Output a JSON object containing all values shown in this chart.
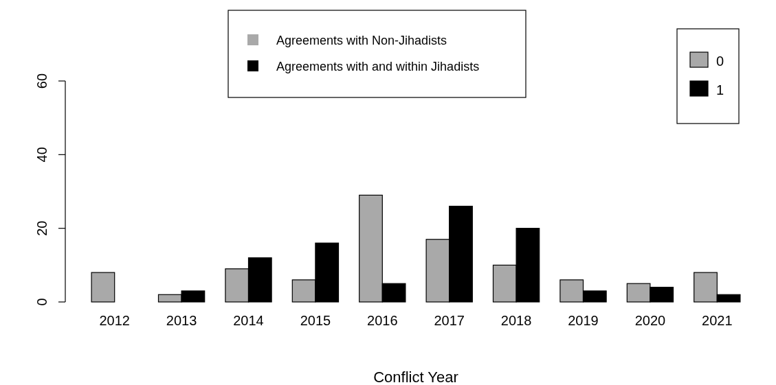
{
  "chart_data": {
    "type": "bar",
    "xlabel": "Conflict Year",
    "categories": [
      "2012",
      "2013",
      "2014",
      "2015",
      "2016",
      "2017",
      "2018",
      "2019",
      "2020",
      "2021"
    ],
    "series": [
      {
        "name": "Agreements with Non-Jihadists",
        "color": "#a9a9a9",
        "values": [
          8,
          2,
          9,
          6,
          29,
          17,
          10,
          6,
          5,
          8
        ]
      },
      {
        "name": "Agreements with and within Jihadists",
        "color": "#000000",
        "values": [
          0,
          3,
          12,
          16,
          5,
          26,
          20,
          3,
          4,
          2
        ]
      }
    ],
    "ylim": [
      0,
      60
    ],
    "yticks": [
      0,
      20,
      40,
      60
    ],
    "grid": false,
    "legend": "top",
    "annotations": [
      "0",
      "1"
    ]
  }
}
